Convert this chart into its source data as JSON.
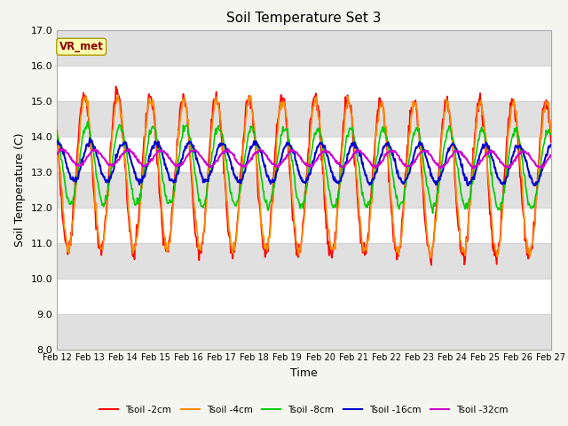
{
  "title": "Soil Temperature Set 3",
  "xlabel": "Time",
  "ylabel": "Soil Temperature (C)",
  "ylim": [
    8.0,
    17.0
  ],
  "yticks": [
    8.0,
    9.0,
    10.0,
    11.0,
    12.0,
    13.0,
    14.0,
    15.0,
    16.0,
    17.0
  ],
  "xtick_labels": [
    "Feb 12",
    "Feb 13",
    "Feb 14",
    "Feb 15",
    "Feb 16",
    "Feb 17",
    "Feb 18",
    "Feb 19",
    "Feb 20",
    "Feb 21",
    "Feb 22",
    "Feb 23",
    "Feb 24",
    "Feb 25",
    "Feb 26",
    "Feb 27"
  ],
  "background_color": "#f5f5f0",
  "plot_bg_color": "#ffffff",
  "band_color": "#e0e0e0",
  "series_colors": [
    "#ff0000",
    "#ff8c00",
    "#00cc00",
    "#0000cc",
    "#cc00cc"
  ],
  "series_labels": [
    "Tsoil -2cm",
    "Tsoil -4cm",
    "Tsoil -8cm",
    "Tsoil -16cm",
    "Tsoil -32cm"
  ],
  "vrmet_label": "VR_met",
  "vrmet_facecolor": "#ffffb0",
  "vrmet_edgecolor": "#aa9900",
  "vrmet_textcolor": "#8b0000"
}
